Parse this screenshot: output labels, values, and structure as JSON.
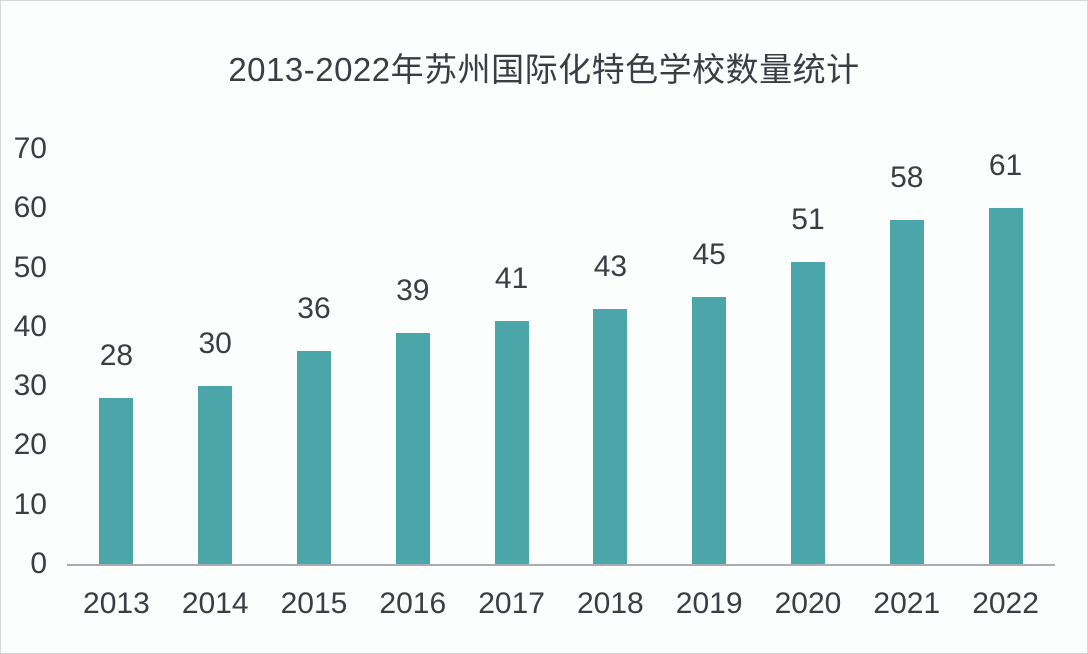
{
  "chart_data": {
    "type": "bar",
    "title": "2013-2022年苏州国际化特色学校数量统计",
    "categories": [
      "2013",
      "2014",
      "2015",
      "2016",
      "2017",
      "2018",
      "2019",
      "2020",
      "2021",
      "2022"
    ],
    "values": [
      28,
      30,
      36,
      39,
      41,
      43,
      45,
      51,
      58,
      61
    ],
    "xlabel": "",
    "ylabel": "",
    "ylim": [
      0,
      70
    ],
    "yticks": [
      0,
      10,
      20,
      30,
      40,
      50,
      60,
      70
    ],
    "grid": "off",
    "legend": "none",
    "data_labels": "outside-end",
    "colors": {
      "bar": "#4AA6A8",
      "text": "#3C3C43",
      "axis_line": "#A9ADB3",
      "background": "#FCFDFD",
      "border": "#D5D7D9"
    }
  }
}
